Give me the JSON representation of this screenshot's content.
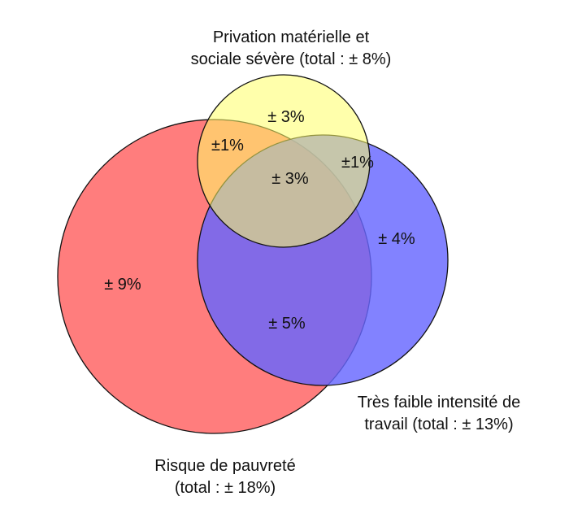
{
  "sets": {
    "poverty": {
      "title_line1": "Risque de pauvreté",
      "title_line2": "(total : ± 18%)",
      "color": "#ff6f6f"
    },
    "deprivation": {
      "title_line1": "Privation matérielle et",
      "title_line2": "sociale sévère (total : ± 8%)",
      "color": "#ffff66"
    },
    "work_intensity": {
      "title_line1": "Très faible intensité de",
      "title_line2": "travail (total : ± 13%)",
      "color": "#6666ff"
    }
  },
  "regions": {
    "poverty_only": "± 9%",
    "deprivation_only": "± 3%",
    "work_only": "± 4%",
    "poverty_deprivation": "±1%",
    "deprivation_work": "±1%",
    "poverty_work": "± 5%",
    "all_three": "± 3%"
  }
}
